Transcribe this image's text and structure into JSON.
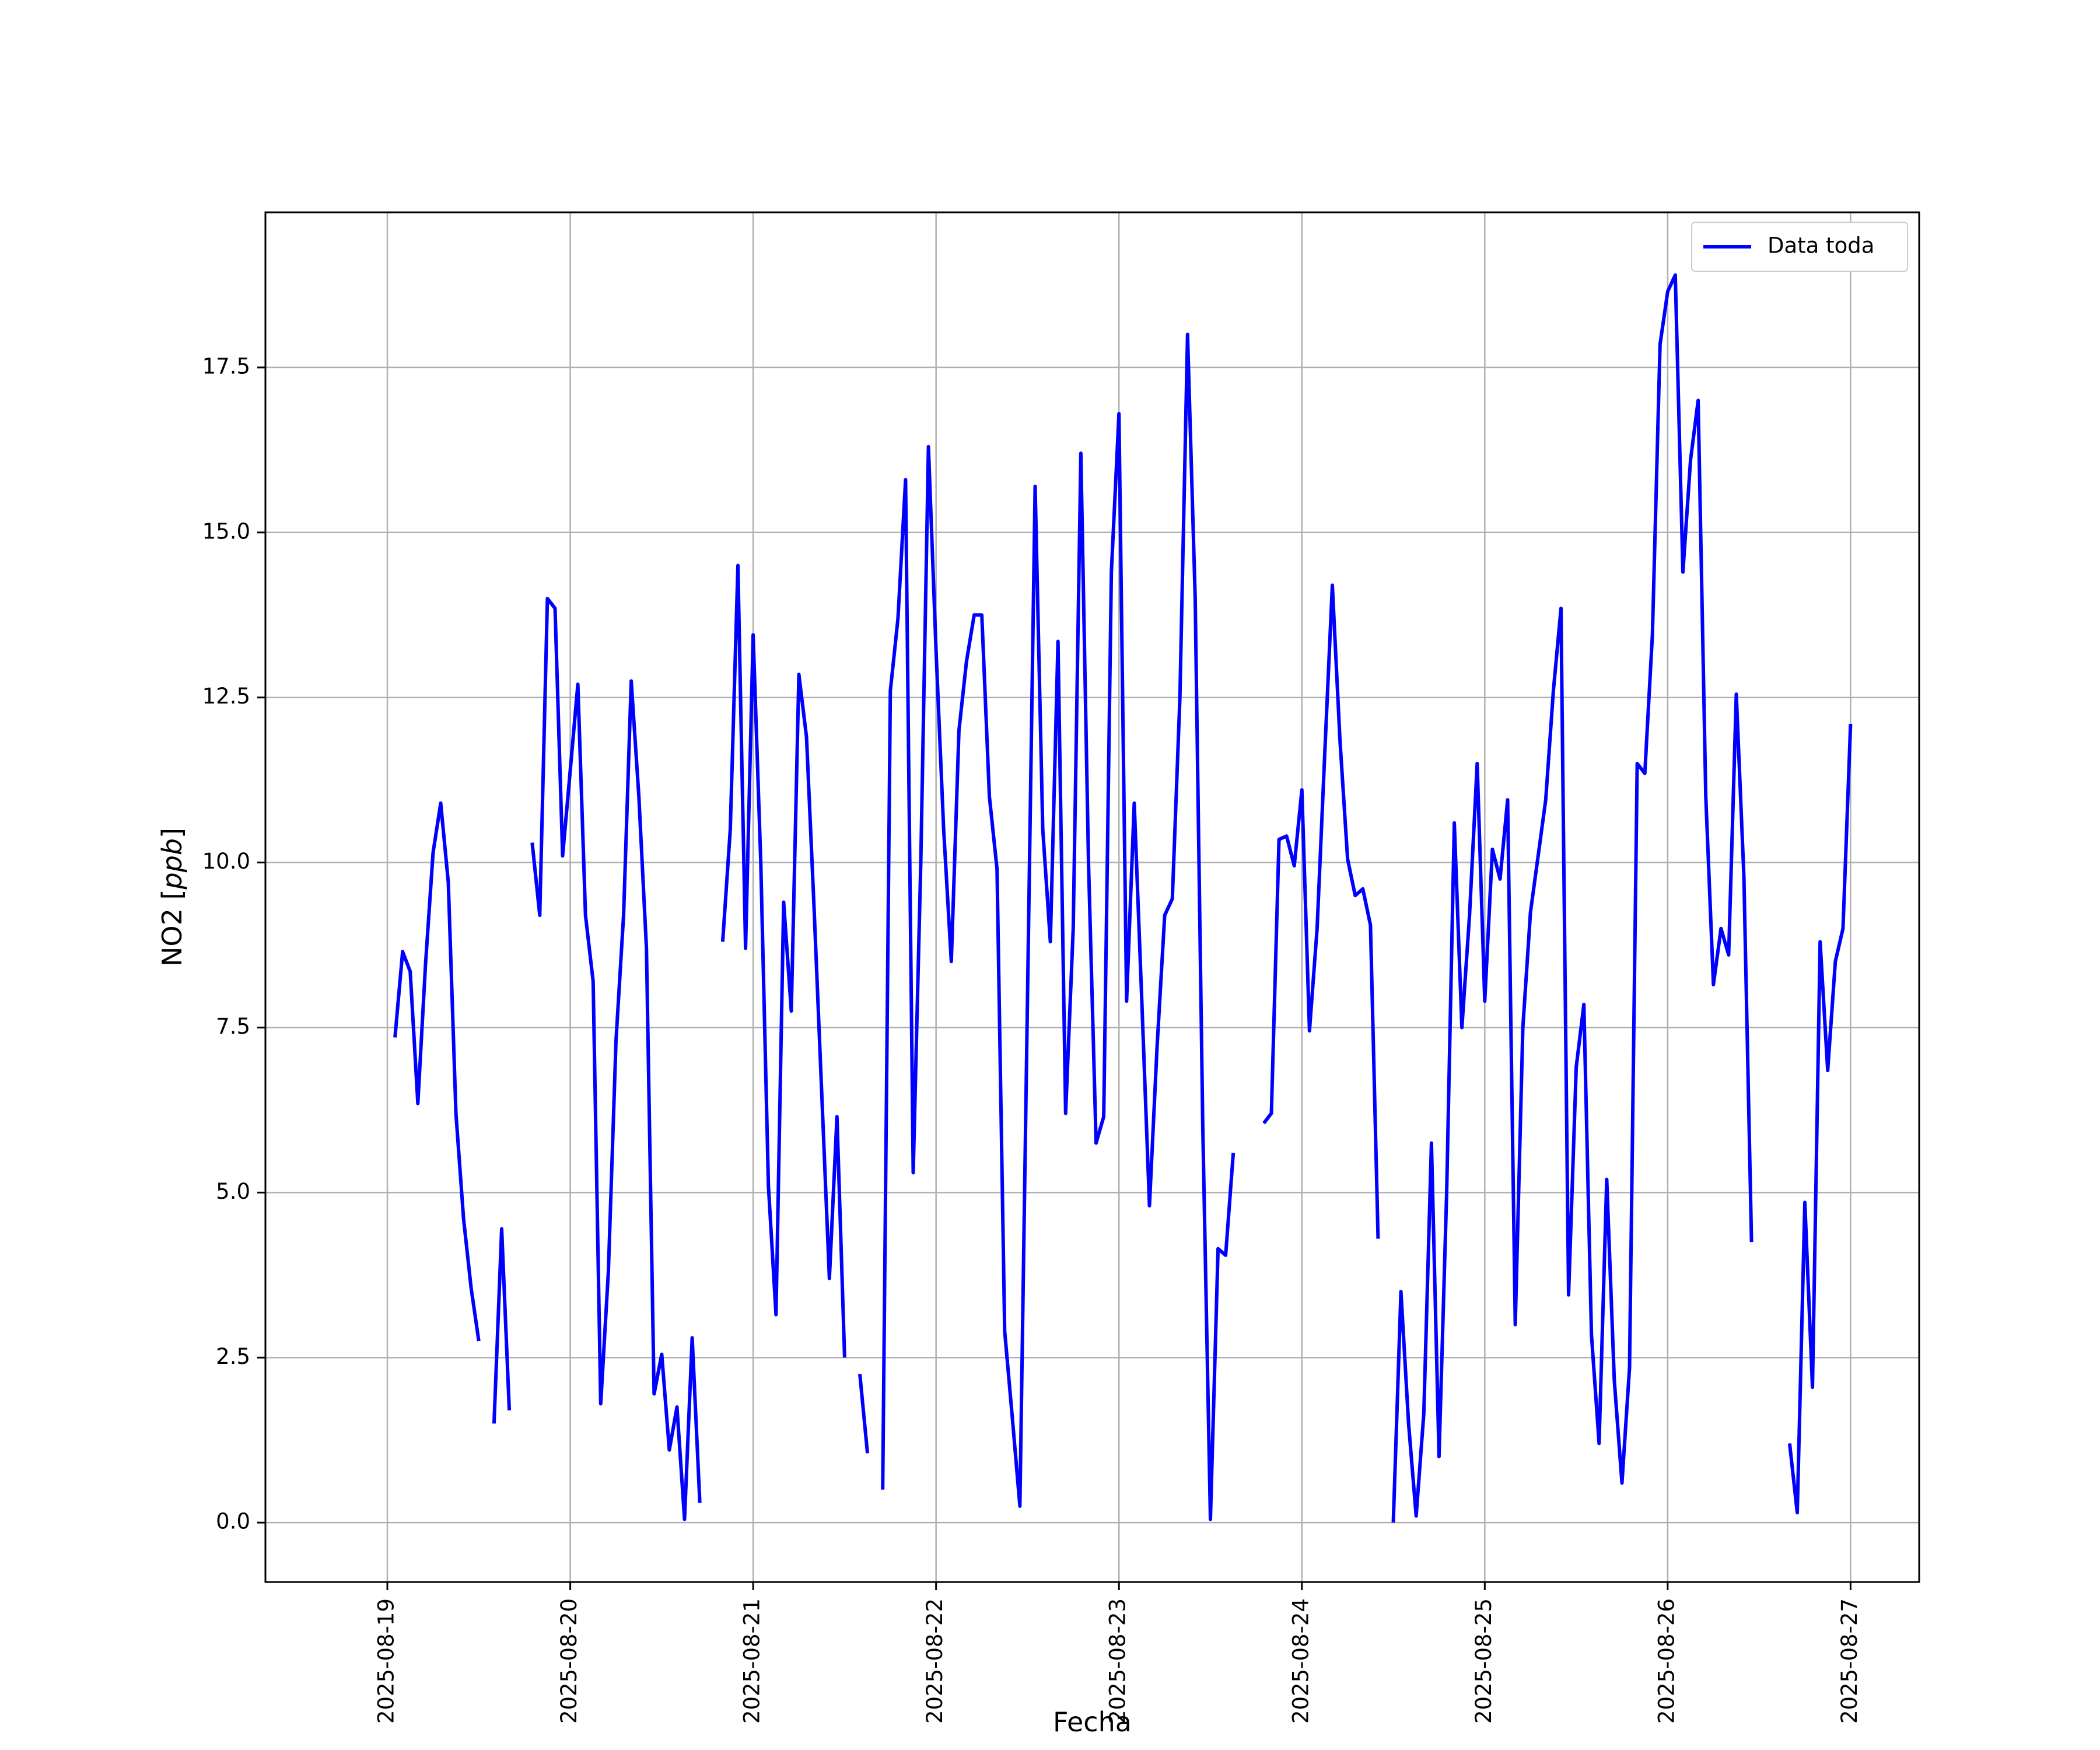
{
  "chart_data": {
    "type": "line",
    "xlabel": "Fecha",
    "ylabel_prefix": "NO2 [",
    "ylabel_unit": "ppb",
    "ylabel_suffix": "]",
    "x_ticks": [
      "2025-08-19",
      "2025-08-20",
      "2025-08-21",
      "2025-08-22",
      "2025-08-23",
      "2025-08-24",
      "2025-08-25",
      "2025-08-26",
      "2025-08-27"
    ],
    "y_ticks": [
      "0.0",
      "2.5",
      "5.0",
      "7.5",
      "10.0",
      "12.5",
      "15.0",
      "17.5"
    ],
    "y_tick_values": [
      0,
      2.5,
      5,
      7.5,
      10,
      12.5,
      15,
      17.5
    ],
    "xlim": [
      "2025-08-18 08:00",
      "2025-08-27 09:00"
    ],
    "ylim": [
      -0.9,
      19.85
    ],
    "grid": true,
    "legend_position": "top-right",
    "series": [
      {
        "name": "Data toda",
        "color": "#0000ff",
        "points": [
          [
            "2025-08-19 01:00",
            7.35
          ],
          [
            "2025-08-19 02:00",
            8.65
          ],
          [
            "2025-08-19 03:00",
            8.35
          ],
          [
            "2025-08-19 04:00",
            6.35
          ],
          [
            "2025-08-19 05:00",
            8.45
          ],
          [
            "2025-08-19 06:00",
            10.15
          ],
          [
            "2025-08-19 07:00",
            10.9
          ],
          [
            "2025-08-19 08:00",
            9.7
          ],
          [
            "2025-08-19 09:00",
            6.2
          ],
          [
            "2025-08-19 10:00",
            4.6
          ],
          [
            "2025-08-19 11:00",
            3.55
          ],
          [
            "2025-08-19 12:00",
            2.75
          ],
          null,
          [
            "2025-08-19 14:00",
            1.5
          ],
          [
            "2025-08-19 15:00",
            4.45
          ],
          [
            "2025-08-19 16:00",
            1.7
          ],
          null,
          [
            "2025-08-19 19:00",
            10.3
          ],
          [
            "2025-08-19 20:00",
            9.2
          ],
          [
            "2025-08-19 21:00",
            14.0
          ],
          [
            "2025-08-19 22:00",
            13.85
          ],
          [
            "2025-08-19 23:00",
            10.1
          ],
          [
            "2025-08-20 00:00",
            11.4
          ],
          [
            "2025-08-20 01:00",
            12.7
          ],
          [
            "2025-08-20 02:00",
            9.2
          ],
          [
            "2025-08-20 03:00",
            8.2
          ],
          [
            "2025-08-20 04:00",
            1.8
          ],
          [
            "2025-08-20 05:00",
            3.8
          ],
          [
            "2025-08-20 06:00",
            7.3
          ],
          [
            "2025-08-20 07:00",
            9.2
          ],
          [
            "2025-08-20 08:00",
            12.75
          ],
          [
            "2025-08-20 09:00",
            11.0
          ],
          [
            "2025-08-20 10:00",
            8.7
          ],
          [
            "2025-08-20 11:00",
            1.95
          ],
          [
            "2025-08-20 12:00",
            2.55
          ],
          [
            "2025-08-20 13:00",
            1.1
          ],
          [
            "2025-08-20 14:00",
            1.75
          ],
          [
            "2025-08-20 15:00",
            0.05
          ],
          [
            "2025-08-20 16:00",
            2.8
          ],
          [
            "2025-08-20 17:00",
            0.3
          ],
          null,
          [
            "2025-08-20 20:00",
            8.8
          ],
          [
            "2025-08-20 21:00",
            10.5
          ],
          [
            "2025-08-20 22:00",
            14.5
          ],
          [
            "2025-08-20 23:00",
            8.7
          ],
          [
            "2025-08-21 00:00",
            13.45
          ],
          [
            "2025-08-21 01:00",
            10.0
          ],
          [
            "2025-08-21 02:00",
            5.1
          ],
          [
            "2025-08-21 03:00",
            3.15
          ],
          [
            "2025-08-21 04:00",
            9.4
          ],
          [
            "2025-08-21 05:00",
            7.75
          ],
          [
            "2025-08-21 06:00",
            12.85
          ],
          [
            "2025-08-21 07:00",
            11.9
          ],
          [
            "2025-08-21 08:00",
            9.3
          ],
          [
            "2025-08-21 09:00",
            6.5
          ],
          [
            "2025-08-21 10:00",
            3.7
          ],
          [
            "2025-08-21 11:00",
            6.15
          ],
          [
            "2025-08-21 12:00",
            2.5
          ],
          null,
          [
            "2025-08-21 14:00",
            2.25
          ],
          [
            "2025-08-21 15:00",
            1.05
          ],
          null,
          [
            "2025-08-21 17:00",
            0.5
          ],
          [
            "2025-08-21 18:00",
            12.6
          ],
          [
            "2025-08-21 19:00",
            13.7
          ],
          [
            "2025-08-21 20:00",
            15.8
          ],
          [
            "2025-08-21 21:00",
            5.3
          ],
          [
            "2025-08-21 22:00",
            10.0
          ],
          [
            "2025-08-21 23:00",
            16.3
          ],
          [
            "2025-08-22 00:00",
            13.2
          ],
          [
            "2025-08-22 01:00",
            10.5
          ],
          [
            "2025-08-22 02:00",
            8.5
          ],
          [
            "2025-08-22 03:00",
            12.0
          ],
          [
            "2025-08-22 04:00",
            13.05
          ],
          [
            "2025-08-22 05:00",
            13.75
          ],
          [
            "2025-08-22 06:00",
            13.75
          ],
          [
            "2025-08-22 07:00",
            11.0
          ],
          [
            "2025-08-22 08:00",
            9.9
          ],
          [
            "2025-08-22 09:00",
            2.9
          ],
          [
            "2025-08-22 10:00",
            1.6
          ],
          [
            "2025-08-22 11:00",
            0.25
          ],
          [
            "2025-08-22 12:00",
            8.0
          ],
          [
            "2025-08-22 13:00",
            15.7
          ],
          [
            "2025-08-22 14:00",
            10.5
          ],
          [
            "2025-08-22 15:00",
            8.8
          ],
          [
            "2025-08-22 16:00",
            13.35
          ],
          [
            "2025-08-22 17:00",
            6.2
          ],
          [
            "2025-08-22 18:00",
            9.0
          ],
          [
            "2025-08-22 19:00",
            16.2
          ],
          [
            "2025-08-22 20:00",
            10.0
          ],
          [
            "2025-08-22 21:00",
            5.75
          ],
          [
            "2025-08-22 22:00",
            6.15
          ],
          [
            "2025-08-22 23:00",
            14.4
          ],
          [
            "2025-08-23 00:00",
            16.8
          ],
          [
            "2025-08-23 01:00",
            7.9
          ],
          [
            "2025-08-23 02:00",
            10.9
          ],
          [
            "2025-08-23 03:00",
            7.9
          ],
          [
            "2025-08-23 04:00",
            4.8
          ],
          [
            "2025-08-23 05:00",
            7.2
          ],
          [
            "2025-08-23 06:00",
            9.2
          ],
          [
            "2025-08-23 07:00",
            9.45
          ],
          [
            "2025-08-23 08:00",
            12.5
          ],
          [
            "2025-08-23 09:00",
            18.0
          ],
          [
            "2025-08-23 10:00",
            14.0
          ],
          [
            "2025-08-23 11:00",
            6.0
          ],
          [
            "2025-08-23 12:00",
            0.05
          ],
          [
            "2025-08-23 13:00",
            4.15
          ],
          [
            "2025-08-23 14:00",
            4.05
          ],
          [
            "2025-08-23 15:00",
            5.6
          ],
          null,
          [
            "2025-08-23 19:00",
            6.05
          ],
          [
            "2025-08-23 20:00",
            6.2
          ],
          [
            "2025-08-23 21:00",
            10.35
          ],
          [
            "2025-08-23 22:00",
            10.4
          ],
          [
            "2025-08-23 23:00",
            9.95
          ],
          [
            "2025-08-24 00:00",
            11.1
          ],
          [
            "2025-08-24 01:00",
            7.45
          ],
          [
            "2025-08-24 02:00",
            9.0
          ],
          [
            "2025-08-24 03:00",
            11.65
          ],
          [
            "2025-08-24 04:00",
            14.2
          ],
          [
            "2025-08-24 05:00",
            11.85
          ],
          [
            "2025-08-24 06:00",
            10.05
          ],
          [
            "2025-08-24 07:00",
            9.5
          ],
          [
            "2025-08-24 08:00",
            9.6
          ],
          [
            "2025-08-24 09:00",
            9.05
          ],
          [
            "2025-08-24 10:00",
            4.3
          ],
          null,
          [
            "2025-08-24 12:00",
            0.0
          ],
          [
            "2025-08-24 13:00",
            3.5
          ],
          [
            "2025-08-24 14:00",
            1.5
          ],
          [
            "2025-08-24 15:00",
            0.1
          ],
          [
            "2025-08-24 16:00",
            1.65
          ],
          [
            "2025-08-24 17:00",
            5.75
          ],
          [
            "2025-08-24 18:00",
            1.0
          ],
          [
            "2025-08-24 19:00",
            5.0
          ],
          [
            "2025-08-24 20:00",
            10.6
          ],
          [
            "2025-08-24 21:00",
            7.5
          ],
          [
            "2025-08-24 22:00",
            9.2
          ],
          [
            "2025-08-24 23:00",
            11.5
          ],
          [
            "2025-08-25 00:00",
            7.9
          ],
          [
            "2025-08-25 01:00",
            10.2
          ],
          [
            "2025-08-25 02:00",
            9.75
          ],
          [
            "2025-08-25 03:00",
            10.95
          ],
          [
            "2025-08-25 04:00",
            3.0
          ],
          [
            "2025-08-25 05:00",
            7.5
          ],
          [
            "2025-08-25 06:00",
            9.25
          ],
          [
            "2025-08-25 07:00",
            10.1
          ],
          [
            "2025-08-25 08:00",
            10.95
          ],
          [
            "2025-08-25 09:00",
            12.6
          ],
          [
            "2025-08-25 10:00",
            13.85
          ],
          [
            "2025-08-25 11:00",
            3.45
          ],
          [
            "2025-08-25 12:00",
            6.9
          ],
          [
            "2025-08-25 13:00",
            7.85
          ],
          [
            "2025-08-25 14:00",
            2.85
          ],
          [
            "2025-08-25 15:00",
            1.2
          ],
          [
            "2025-08-25 16:00",
            5.2
          ],
          [
            "2025-08-25 17:00",
            2.15
          ],
          [
            "2025-08-25 18:00",
            0.6
          ],
          [
            "2025-08-25 19:00",
            2.35
          ],
          [
            "2025-08-25 20:00",
            11.5
          ],
          [
            "2025-08-25 21:00",
            11.35
          ],
          [
            "2025-08-25 22:00",
            13.45
          ],
          [
            "2025-08-25 23:00",
            17.85
          ],
          [
            "2025-08-26 00:00",
            18.65
          ],
          [
            "2025-08-26 01:00",
            18.9
          ],
          [
            "2025-08-26 02:00",
            14.4
          ],
          [
            "2025-08-26 03:00",
            16.1
          ],
          [
            "2025-08-26 04:00",
            17.0
          ],
          [
            "2025-08-26 05:00",
            11.0
          ],
          [
            "2025-08-26 06:00",
            8.15
          ],
          [
            "2025-08-26 07:00",
            9.0
          ],
          [
            "2025-08-26 08:00",
            8.6
          ],
          [
            "2025-08-26 09:00",
            12.55
          ],
          [
            "2025-08-26 10:00",
            9.8
          ],
          [
            "2025-08-26 11:00",
            4.25
          ],
          null,
          [
            "2025-08-26 16:00",
            1.2
          ],
          [
            "2025-08-26 17:00",
            0.15
          ],
          [
            "2025-08-26 18:00",
            4.85
          ],
          [
            "2025-08-26 19:00",
            2.05
          ],
          [
            "2025-08-26 20:00",
            8.8
          ],
          [
            "2025-08-26 21:00",
            6.85
          ],
          [
            "2025-08-26 22:00",
            8.5
          ],
          [
            "2025-08-26 23:00",
            9.0
          ],
          [
            "2025-08-27 00:00",
            12.1
          ]
        ]
      }
    ]
  }
}
